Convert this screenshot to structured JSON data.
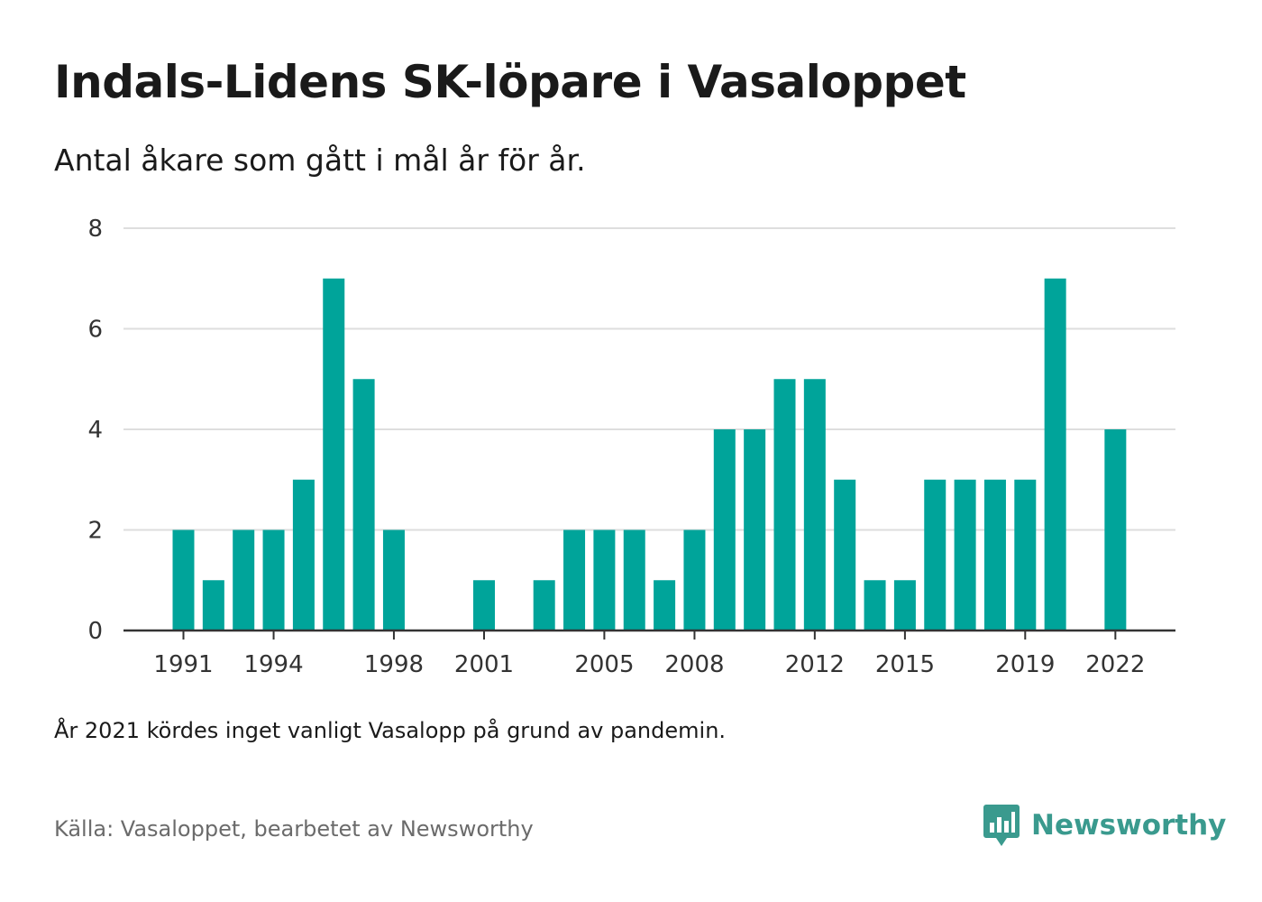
{
  "header": {
    "title": "Indals-Lidens SK-löpare i Vasaloppet",
    "subtitle": "Antal åkare som gått i mål år för år."
  },
  "footer": {
    "note": "År 2021 kördes inget vanligt Vasalopp på grund av pandemin.",
    "source": "Källa: Vasaloppet, bearbetet av Newsworthy",
    "brand": "Newsworthy",
    "brand_icon": "bar-chart-speech-bubble-icon"
  },
  "colors": {
    "bar": "#00a49a",
    "grid": "#dedede",
    "axis": "#333333",
    "brand": "#3a9a8e"
  },
  "chart_data": {
    "type": "bar",
    "title": "Indals-Lidens SK-löpare i Vasaloppet",
    "subtitle": "Antal åkare som gått i mål år för år.",
    "xlabel": "",
    "ylabel": "",
    "ylim": [
      0,
      8
    ],
    "yticks": [
      0,
      2,
      4,
      6,
      8
    ],
    "xtick_labels": [
      "1991",
      "1994",
      "1998",
      "2001",
      "2005",
      "2008",
      "2012",
      "2015",
      "2019",
      "2022"
    ],
    "grid": true,
    "categories": [
      1991,
      1992,
      1993,
      1994,
      1995,
      1996,
      1997,
      1998,
      1999,
      2000,
      2001,
      2002,
      2003,
      2004,
      2005,
      2006,
      2007,
      2008,
      2009,
      2010,
      2011,
      2012,
      2013,
      2014,
      2015,
      2016,
      2017,
      2018,
      2019,
      2020,
      2021,
      2022
    ],
    "values": [
      2,
      1,
      2,
      2,
      3,
      7,
      5,
      2,
      0,
      0,
      1,
      0,
      1,
      2,
      2,
      2,
      1,
      2,
      4,
      4,
      5,
      5,
      3,
      1,
      1,
      3,
      3,
      3,
      3,
      7,
      0,
      4
    ]
  }
}
